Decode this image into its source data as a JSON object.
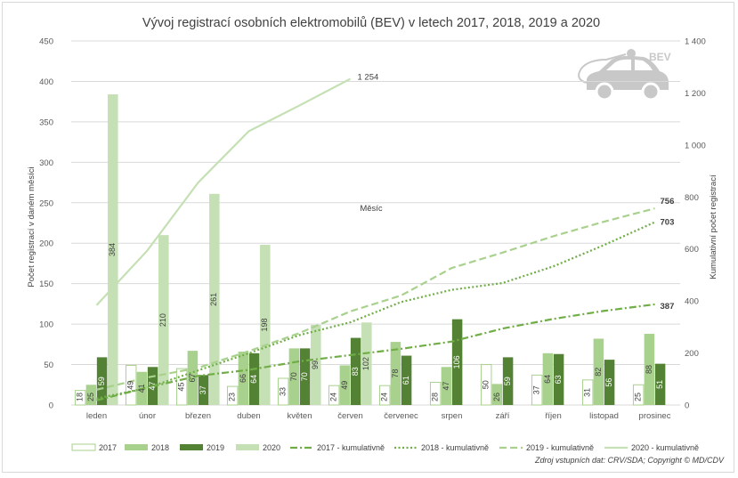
{
  "chart_data": {
    "type": "bar",
    "title": "Vývoj registrací osobních elektromobilů (BEV) v letech 2017, 2018, 2019 a 2020",
    "xlabel": "Měsíc",
    "ylabel": "Počet registrací v daném měsíci",
    "y2label": "Kumulativní počet registrací",
    "ylim": [
      0,
      450
    ],
    "y2lim": [
      0,
      1400
    ],
    "yticks": [
      "0",
      "50",
      "100",
      "150",
      "200",
      "250",
      "300",
      "350",
      "400",
      "450"
    ],
    "y2ticks": [
      "0",
      "200",
      "400",
      "600",
      "800",
      "1 000",
      "1 200",
      "1 400"
    ],
    "grid": true,
    "legend_position": "bottom",
    "categories": [
      "leden",
      "únor",
      "březen",
      "duben",
      "květen",
      "červen",
      "červenec",
      "srpen",
      "září",
      "říjen",
      "listopad",
      "prosinec"
    ],
    "series": [
      {
        "name": "2017",
        "type": "bar",
        "color": "#ffffff",
        "stroke": "#a9d18e",
        "labels": true,
        "values": [
          18,
          49,
          45,
          23,
          33,
          24,
          24,
          28,
          50,
          37,
          31,
          25
        ]
      },
      {
        "name": "2018",
        "type": "bar",
        "color": "#a9d18e",
        "labels": true,
        "values": [
          25,
          41,
          67,
          66,
          70,
          49,
          78,
          47,
          26,
          64,
          82,
          88
        ]
      },
      {
        "name": "2019",
        "type": "bar",
        "color": "#548235",
        "labels": true,
        "values": [
          59,
          47,
          37,
          64,
          70,
          83,
          61,
          106,
          59,
          63,
          56,
          51
        ]
      },
      {
        "name": "2020",
        "type": "bar",
        "color": "#c5e0b4",
        "labels": true,
        "values": [
          384,
          210,
          261,
          198,
          99,
          102,
          null,
          null,
          null,
          null,
          null,
          null
        ]
      },
      {
        "name": "2017 - kumulativně",
        "type": "line",
        "axis": "right",
        "color": "#70ad47",
        "dash": "dashdot",
        "end_label": "387",
        "values": [
          18,
          67,
          112,
          135,
          168,
          192,
          216,
          244,
          294,
          331,
          362,
          387
        ]
      },
      {
        "name": "2018 - kumulativně",
        "type": "line",
        "axis": "right",
        "color": "#70ad47",
        "dash": "dotted",
        "end_label": "703",
        "values": [
          25,
          66,
          133,
          199,
          269,
          318,
          396,
          443,
          469,
          533,
          615,
          703
        ]
      },
      {
        "name": "2019 - kumulativně",
        "type": "line",
        "axis": "right",
        "color": "#a9d18e",
        "dash": "dashed",
        "end_label": "756",
        "values": [
          59,
          106,
          143,
          207,
          277,
          360,
          421,
          527,
          586,
          649,
          705,
          756
        ]
      },
      {
        "name": "2020 - kumulativně",
        "type": "line",
        "axis": "right",
        "color": "#c5e0b4",
        "dash": "solid",
        "end_label": "1 254",
        "values": [
          384,
          594,
          855,
          1053,
          1152,
          1254,
          null,
          null,
          null,
          null,
          null,
          null
        ]
      }
    ]
  },
  "logo": {
    "label": "BEV",
    "color": "#c8c8c8"
  },
  "source": "Zdroj vstupních dat: CRV/SDA; Copyright © MD/CDV"
}
